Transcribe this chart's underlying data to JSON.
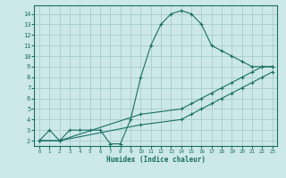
{
  "xlabel": "Humidex (Indice chaleur)",
  "bg_color": "#cce8e8",
  "grid_color": "#aacccc",
  "line_color": "#1a7060",
  "xlim": [
    -0.5,
    23.5
  ],
  "ylim": [
    1.5,
    14.8
  ],
  "xticks": [
    0,
    1,
    2,
    3,
    4,
    5,
    6,
    7,
    8,
    9,
    10,
    11,
    12,
    13,
    14,
    15,
    16,
    17,
    18,
    19,
    20,
    21,
    22,
    23
  ],
  "yticks": [
    2,
    3,
    4,
    5,
    6,
    7,
    8,
    9,
    10,
    11,
    12,
    13,
    14
  ],
  "curve1_x": [
    0,
    1,
    2,
    3,
    4,
    5,
    6,
    7,
    8,
    9,
    10,
    11,
    12,
    13,
    14,
    15,
    16,
    17,
    18,
    19,
    20,
    21,
    22,
    23
  ],
  "curve1_y": [
    2,
    3,
    2,
    3,
    3,
    3,
    3,
    1.7,
    1.7,
    4,
    8,
    11,
    13,
    14,
    14.3,
    14,
    13,
    11,
    10.5,
    10,
    9.5,
    9,
    9,
    9
  ],
  "curve2_x": [
    0,
    2,
    10,
    14,
    15,
    16,
    17,
    18,
    19,
    20,
    21,
    22,
    23
  ],
  "curve2_y": [
    2,
    2,
    4.5,
    5,
    5.5,
    6,
    6.5,
    7,
    7.5,
    8,
    8.5,
    9,
    9
  ],
  "curve3_x": [
    0,
    2,
    10,
    14,
    15,
    16,
    17,
    18,
    19,
    20,
    21,
    22,
    23
  ],
  "curve3_y": [
    2,
    2,
    3.5,
    4,
    4.5,
    5,
    5.5,
    6,
    6.5,
    7,
    7.5,
    8,
    8.5
  ]
}
